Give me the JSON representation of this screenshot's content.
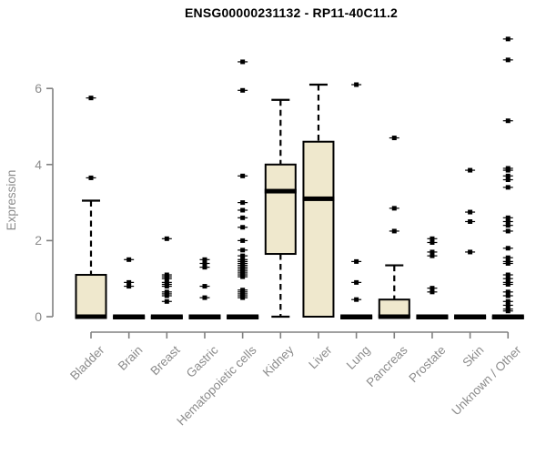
{
  "chart_data": {
    "type": "box",
    "title": "ENSG00000231132 - RP11-40C11.2",
    "ylabel": "Expression",
    "xlabel": "",
    "yticks": [
      0,
      2,
      4,
      6
    ],
    "ylim": [
      0,
      7.4
    ],
    "grid": false,
    "legend": null,
    "categories": [
      "Bladder",
      "Brain",
      "Breast",
      "Gastric",
      "Hematopoietic cells",
      "Kidney",
      "Liver",
      "Lung",
      "Pancreas",
      "Prostate",
      "Skin",
      "Unknown / Other"
    ],
    "boxes": [
      {
        "label": "Bladder",
        "q1": 0,
        "median": 0,
        "q3": 1.1,
        "whisker_low": 0,
        "whisker_high": 3.05,
        "outliers": [
          3.65,
          5.75
        ]
      },
      {
        "label": "Brain",
        "q1": 0,
        "median": 0,
        "q3": 0,
        "whisker_low": 0,
        "whisker_high": 0,
        "outliers": [
          0.8,
          0.9,
          1.5
        ]
      },
      {
        "label": "Breast",
        "q1": 0,
        "median": 0,
        "q3": 0,
        "whisker_low": 0,
        "whisker_high": 0,
        "outliers": [
          0.4,
          0.55,
          0.6,
          0.65,
          0.8,
          0.85,
          0.9,
          1.0,
          1.05,
          1.1,
          2.05
        ]
      },
      {
        "label": "Gastric",
        "q1": 0,
        "median": 0,
        "q3": 0,
        "whisker_low": 0,
        "whisker_high": 0,
        "outliers": [
          0.5,
          0.8,
          1.3,
          1.4,
          1.5
        ]
      },
      {
        "label": "Hematopoietic cells",
        "q1": 0,
        "median": 0,
        "q3": 0,
        "whisker_low": 0,
        "whisker_high": 0,
        "outliers": [
          0.5,
          0.55,
          0.6,
          0.65,
          0.7,
          1.05,
          1.1,
          1.15,
          1.2,
          1.25,
          1.3,
          1.35,
          1.4,
          1.45,
          1.5,
          1.6,
          1.75,
          2.0,
          2.35,
          2.6,
          2.8,
          3.0,
          3.7,
          5.95,
          6.7
        ]
      },
      {
        "label": "Kidney",
        "q1": 1.65,
        "median": 3.3,
        "q3": 4.0,
        "whisker_low": 0,
        "whisker_high": 5.7,
        "outliers": []
      },
      {
        "label": "Liver",
        "q1": 0,
        "median": 3.1,
        "q3": 4.6,
        "whisker_low": 0,
        "whisker_high": 6.1,
        "outliers": []
      },
      {
        "label": "Lung",
        "q1": 0,
        "median": 0,
        "q3": 0,
        "whisker_low": 0,
        "whisker_high": 0,
        "outliers": [
          0.45,
          0.9,
          1.45,
          6.1
        ]
      },
      {
        "label": "Pancreas",
        "q1": 0,
        "median": 0,
        "q3": 0.45,
        "whisker_low": 0,
        "whisker_high": 1.35,
        "outliers": [
          2.25,
          2.85,
          4.7
        ]
      },
      {
        "label": "Prostate",
        "q1": 0,
        "median": 0,
        "q3": 0,
        "whisker_low": 0,
        "whisker_high": 0,
        "outliers": [
          0.65,
          0.75,
          1.6,
          1.7,
          1.95,
          2.05
        ]
      },
      {
        "label": "Skin",
        "q1": 0,
        "median": 0,
        "q3": 0,
        "whisker_low": 0,
        "whisker_high": 0,
        "outliers": [
          1.7,
          2.5,
          2.75,
          3.85
        ]
      },
      {
        "label": "Unknown / Other",
        "q1": 0,
        "median": 0,
        "q3": 0,
        "whisker_low": 0,
        "whisker_high": 0,
        "outliers": [
          0.15,
          0.2,
          0.3,
          0.4,
          0.55,
          0.65,
          0.85,
          0.9,
          1.0,
          1.1,
          1.4,
          1.45,
          1.55,
          1.8,
          2.25,
          2.4,
          2.5,
          2.6,
          3.4,
          3.6,
          3.7,
          3.85,
          3.9,
          5.15,
          6.75,
          7.3
        ]
      }
    ],
    "colors": {
      "box_fill": "#EFE8CD",
      "box_stroke": "#000000",
      "median": "#000000",
      "whisker": "#000000",
      "outlier": "#000000",
      "axis": "#808080",
      "tick_label": "#8C8C8C",
      "title": "#000000"
    }
  }
}
